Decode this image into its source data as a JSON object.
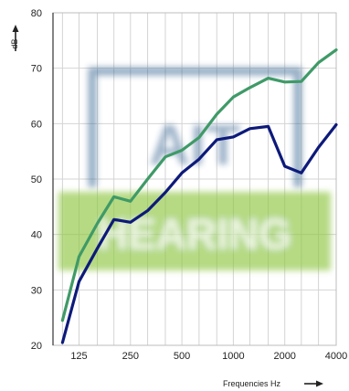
{
  "chart_data": {
    "type": "line",
    "title": "",
    "xlabel": "Frequencies Hz",
    "ylabel": "dB",
    "x_scale": "log",
    "xlim": [
      88,
      4000
    ],
    "ylim": [
      20,
      80
    ],
    "grid": true,
    "x_tick_labels": [
      "125",
      "250",
      "500",
      "1000",
      "2000",
      "4000"
    ],
    "x_tick_values": [
      125,
      250,
      500,
      1000,
      2000,
      4000
    ],
    "y_ticks": [
      20,
      30,
      40,
      50,
      60,
      70,
      80
    ],
    "series": [
      {
        "color": "#3f9a67",
        "x": [
          100,
          125,
          160,
          200,
          250,
          315,
          400,
          500,
          630,
          800,
          1000,
          1250,
          1600,
          2000,
          2500,
          3150,
          4000
        ],
        "y": [
          24.5,
          36,
          42,
          46.8,
          46,
          50,
          54,
          55.2,
          57.5,
          61.7,
          64.8,
          66.5,
          68.2,
          67.5,
          67.6,
          71,
          73.3
        ]
      },
      {
        "color": "#0d1a7a",
        "x": [
          100,
          125,
          160,
          200,
          250,
          315,
          400,
          500,
          630,
          800,
          1000,
          1250,
          1600,
          2000,
          2500,
          3150,
          4000
        ],
        "y": [
          20.5,
          31.5,
          37.5,
          42.7,
          42.2,
          44.3,
          47.6,
          51.1,
          53.6,
          57.1,
          57.6,
          59.1,
          59.5,
          52.3,
          51.1,
          55.7,
          59.8
        ]
      }
    ]
  },
  "watermark": {
    "text_top": "AIT",
    "text_bottom": "HEARING",
    "frame_color": "#2f5e8c",
    "band_color": "#8cc63f"
  }
}
